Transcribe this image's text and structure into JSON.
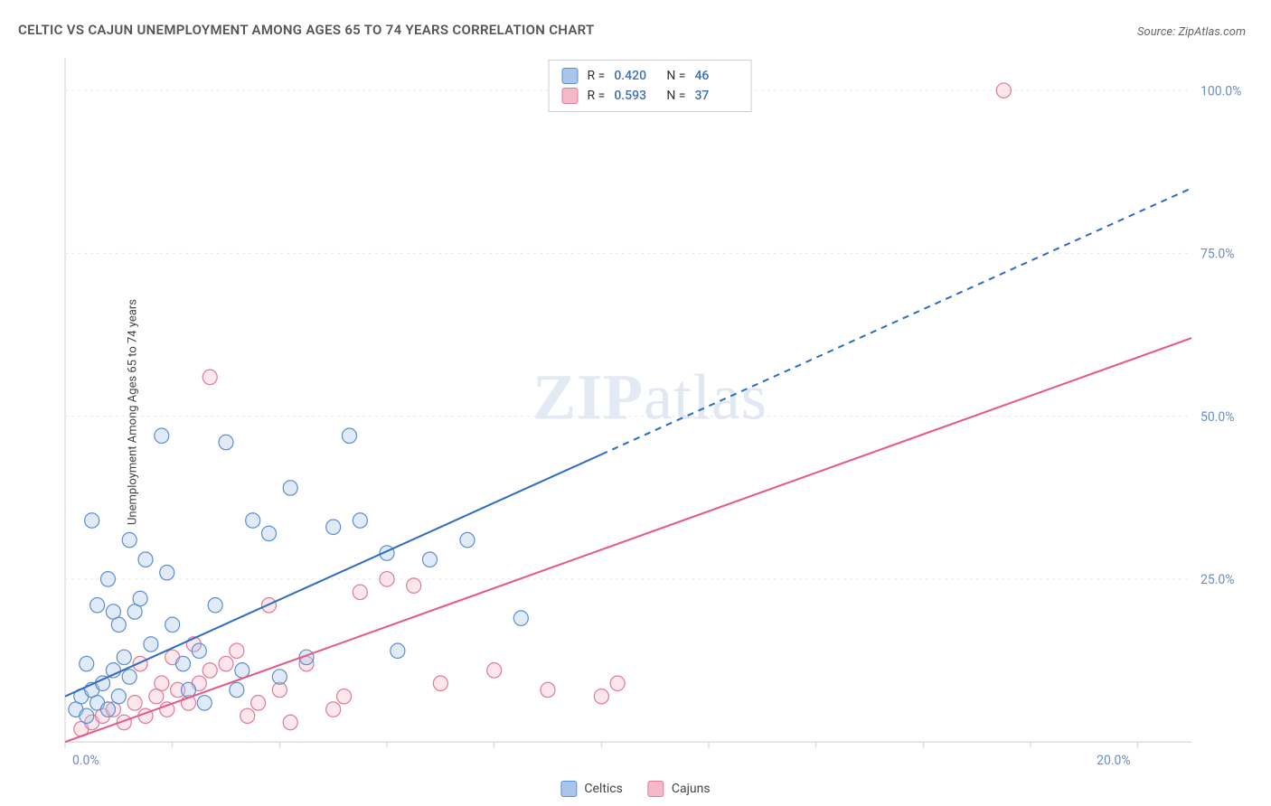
{
  "header": {
    "title": "CELTIC VS CAJUN UNEMPLOYMENT AMONG AGES 65 TO 74 YEARS CORRELATION CHART",
    "source_prefix": "Source: ",
    "source_name": "ZipAtlas.com"
  },
  "watermark": {
    "zip": "ZIP",
    "atlas": "atlas"
  },
  "chart": {
    "type": "scatter",
    "ylabel": "Unemployment Among Ages 65 to 74 years",
    "background_color": "#ffffff",
    "grid_color": "#e6e6e6",
    "border_color": "#cfcfcf",
    "xlim": [
      0,
      21
    ],
    "ylim": [
      0,
      105
    ],
    "xticks": [
      0,
      2,
      4,
      6,
      8,
      10,
      12,
      14,
      16,
      18,
      20
    ],
    "xticklabels": [
      "0.0%",
      "",
      "",
      "",
      "",
      "",
      "",
      "",
      "",
      "",
      "20.0%"
    ],
    "yticks": [
      25,
      50,
      75,
      100
    ],
    "yticklabels": [
      "25.0%",
      "50.0%",
      "75.0%",
      "100.0%"
    ],
    "tick_label_color": "#6a8fc7",
    "tick_fontsize": 14,
    "marker_radius": 8,
    "marker_stroke_width": 1.2,
    "marker_fill_opacity": 0.35,
    "series": [
      {
        "key": "celtics",
        "label": "Celtics",
        "color_fill": "#a9c6ea",
        "color_stroke": "#5b8fd1",
        "R_label": "R =",
        "R": "0.420",
        "N_label": "N =",
        "N": "46",
        "line": {
          "x1": 0,
          "y1": 7,
          "x2": 21,
          "y2": 85,
          "solid_until_x": 10,
          "color": "#2f6fc2",
          "width": 2
        },
        "points": [
          [
            0.2,
            5
          ],
          [
            0.3,
            7
          ],
          [
            0.4,
            4
          ],
          [
            0.5,
            8
          ],
          [
            0.6,
            6
          ],
          [
            0.7,
            9
          ],
          [
            0.8,
            5
          ],
          [
            0.9,
            11
          ],
          [
            1.0,
            7
          ],
          [
            1.1,
            13
          ],
          [
            1.2,
            10
          ],
          [
            0.9,
            20
          ],
          [
            1.0,
            18
          ],
          [
            1.3,
            20
          ],
          [
            1.4,
            22
          ],
          [
            0.8,
            25
          ],
          [
            1.5,
            28
          ],
          [
            1.2,
            31
          ],
          [
            0.5,
            34
          ],
          [
            2.0,
            18
          ],
          [
            2.2,
            12
          ],
          [
            2.5,
            14
          ],
          [
            2.8,
            21
          ],
          [
            1.8,
            47
          ],
          [
            3.0,
            46
          ],
          [
            3.3,
            11
          ],
          [
            3.5,
            34
          ],
          [
            3.8,
            32
          ],
          [
            4.2,
            39
          ],
          [
            4.5,
            13
          ],
          [
            5.0,
            33
          ],
          [
            5.3,
            47
          ],
          [
            5.5,
            34
          ],
          [
            6.0,
            29
          ],
          [
            6.2,
            14
          ],
          [
            6.8,
            28
          ],
          [
            7.5,
            31
          ],
          [
            8.5,
            19
          ],
          [
            2.3,
            8
          ],
          [
            1.6,
            15
          ],
          [
            1.9,
            26
          ],
          [
            0.6,
            21
          ],
          [
            0.4,
            12
          ],
          [
            3.2,
            8
          ],
          [
            2.6,
            6
          ],
          [
            4.0,
            10
          ]
        ]
      },
      {
        "key": "cajuns",
        "label": "Cajuns",
        "color_fill": "#f4b9c8",
        "color_stroke": "#e07a98",
        "R_label": "R =",
        "R": "0.593",
        "N_label": "N =",
        "N": "37",
        "line": {
          "x1": 0,
          "y1": 0,
          "x2": 21,
          "y2": 62,
          "solid_until_x": 21,
          "color": "#e75a88",
          "width": 2
        },
        "points": [
          [
            0.3,
            2
          ],
          [
            0.5,
            3
          ],
          [
            0.7,
            4
          ],
          [
            0.9,
            5
          ],
          [
            1.1,
            3
          ],
          [
            1.3,
            6
          ],
          [
            1.5,
            4
          ],
          [
            1.7,
            7
          ],
          [
            1.9,
            5
          ],
          [
            2.1,
            8
          ],
          [
            2.3,
            6
          ],
          [
            2.5,
            9
          ],
          [
            2.7,
            11
          ],
          [
            2.0,
            13
          ],
          [
            2.4,
            15
          ],
          [
            3.0,
            12
          ],
          [
            3.2,
            14
          ],
          [
            3.4,
            4
          ],
          [
            3.6,
            6
          ],
          [
            3.8,
            21
          ],
          [
            4.0,
            8
          ],
          [
            4.2,
            3
          ],
          [
            4.5,
            12
          ],
          [
            5.0,
            5
          ],
          [
            5.5,
            23
          ],
          [
            6.0,
            25
          ],
          [
            6.5,
            24
          ],
          [
            7.0,
            9
          ],
          [
            8.0,
            11
          ],
          [
            9.0,
            8
          ],
          [
            10.0,
            7
          ],
          [
            10.3,
            9
          ],
          [
            2.7,
            56
          ],
          [
            1.4,
            12
          ],
          [
            1.8,
            9
          ],
          [
            5.2,
            7
          ],
          [
            17.5,
            100
          ]
        ]
      }
    ],
    "legend_bottom": {
      "items": [
        "Celtics",
        "Cajuns"
      ]
    }
  }
}
